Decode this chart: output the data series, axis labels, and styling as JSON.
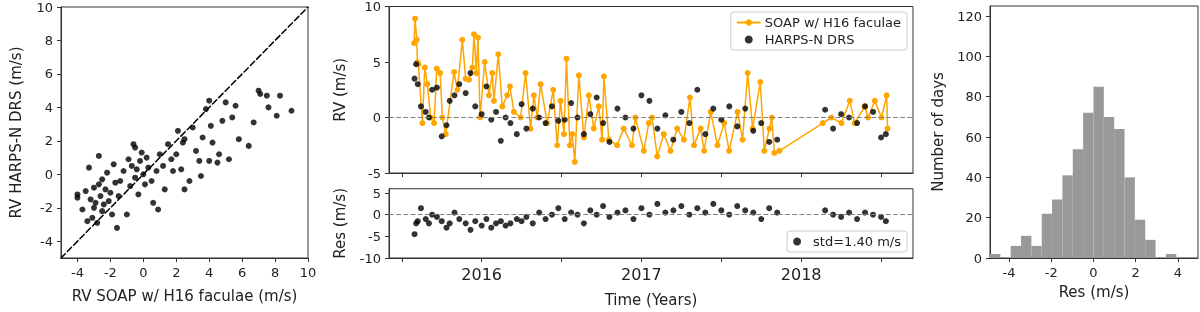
{
  "chart_data": [
    {
      "type": "scatter",
      "xlabel": "RV SOAP w/ H16 faculae (m/s)",
      "ylabel": "RV HARPS-N DRS (m/s)",
      "xlim": [
        -5,
        10
      ],
      "ylim": [
        -5,
        10
      ],
      "xticks": [
        -4,
        -2,
        0,
        2,
        4,
        6,
        8,
        10
      ],
      "yticks": [
        -4,
        -2,
        0,
        2,
        4,
        6,
        8,
        10
      ],
      "series": [
        {
          "type": "scatter",
          "color": "#000000",
          "x": [
            -4,
            -4,
            -3.7,
            -3.5,
            -3.4,
            -3.3,
            -3.2,
            -3.1,
            -3,
            -3,
            -2.9,
            -2.8,
            -2.7,
            -2.7,
            -2.6,
            -2.5,
            -2.5,
            -2.4,
            -2.3,
            -2.2,
            -2.1,
            -2,
            -1.9,
            -1.8,
            -1.7,
            -1.6,
            -1.5,
            -1.4,
            -1.2,
            -1,
            -0.9,
            -0.8,
            -0.7,
            -0.6,
            -0.5,
            -0.5,
            -0.4,
            -0.3,
            -0.2,
            -0.1,
            0,
            0.1,
            0.2,
            0.3,
            0.5,
            0.6,
            0.8,
            0.9,
            1,
            1.2,
            1.3,
            1.5,
            1.7,
            1.8,
            2,
            2.1,
            2.3,
            2.4,
            2.5,
            2.5,
            2.8,
            3,
            3.2,
            3.4,
            3.5,
            3.6,
            3.8,
            4,
            4,
            4.1,
            4.2,
            4.5,
            4.6,
            4.8,
            5,
            5.2,
            5.4,
            5.6,
            5.8,
            6.4,
            6.7,
            7,
            7.1,
            7.5,
            7.6,
            8.1,
            8.3,
            9
          ],
          "values": [
            -1.2,
            -1.4,
            -2.1,
            -1,
            -2.8,
            0.4,
            -1.5,
            -2.6,
            -0.8,
            -2,
            -1.7,
            -2.9,
            1.1,
            -0.6,
            -1.3,
            -2.2,
            -0.3,
            -1.8,
            -0.9,
            0.1,
            -1.6,
            -1.1,
            -2.4,
            0.6,
            -0.5,
            -3.2,
            -1.3,
            -0.4,
            0.2,
            -2.4,
            0.9,
            -0.7,
            0.5,
            1.8,
            -0.2,
            1.6,
            0.3,
            -1.2,
            0.8,
            1.3,
            0,
            -0.6,
            1,
            0.4,
            -0.4,
            -1.7,
            0.2,
            -2.1,
            1.2,
            0.5,
            -0.9,
            1.8,
            0.9,
            0.2,
            1.2,
            2.6,
            0.3,
            1.9,
            2.1,
            -0.9,
            -0.4,
            2.8,
            1.4,
            0.8,
            -0.1,
            2.2,
            3.9,
            4.4,
            0.8,
            2.9,
            1.9,
            0.7,
            1.2,
            3.2,
            4.3,
            0.9,
            3.4,
            4.1,
            2.1,
            1.7,
            3.1,
            5,
            4.8,
            4.7,
            4,
            3.5,
            4.7,
            3.8
          ]
        },
        {
          "type": "line",
          "color": "#000000",
          "marker": "none",
          "line_style": "dashed",
          "x": [
            -5,
            10
          ],
          "values": [
            -5,
            10
          ]
        }
      ]
    },
    {
      "type": "line",
      "ylabel": "RV (m/s)",
      "xlim": [
        2015.42,
        2018.7
      ],
      "ylim": [
        -5,
        10
      ],
      "xticks": [
        2015.5,
        2016,
        2016.5,
        2017,
        2017.5,
        2018,
        2018.5
      ],
      "yticks": [
        -5,
        0,
        5,
        10
      ],
      "tick_labels": "y",
      "legend": "top right",
      "ref_lines": [
        {
          "axis": "y",
          "value": 0,
          "color": "#808080",
          "line_style": "dashed"
        }
      ],
      "series": [
        {
          "name": "SOAP w/ H16 faculae",
          "type": "line",
          "color": "#ffa500",
          "marker": "circle",
          "x": [
            2015.577,
            2015.583,
            2015.594,
            2015.598,
            2015.604,
            2015.629,
            2015.644,
            2015.66,
            2015.681,
            2015.702,
            2015.719,
            2015.74,
            2015.754,
            2015.775,
            2015.827,
            2015.848,
            2015.879,
            2015.9,
            2015.921,
            2015.942,
            2015.952,
            2015.967,
            2015.977,
            2015.99,
            2016.019,
            2016.046,
            2016.067,
            2016.077,
            2016.104,
            2016.129,
            2016.16,
            2016.177,
            2016.202,
            2016.244,
            2016.275,
            2016.306,
            2016.327,
            2016.348,
            2016.369,
            2016.41,
            2016.448,
            2016.473,
            2016.494,
            2016.515,
            2016.531,
            2016.552,
            2016.567,
            2016.583,
            2016.608,
            2016.64,
            2016.671,
            2016.702,
            2016.733,
            2016.754,
            2016.765,
            2016.796,
            2016.848,
            2016.889,
            2016.941,
            2016.962,
            2017.015,
            2017.046,
            2017.067,
            2017.099,
            2017.14,
            2017.182,
            2017.224,
            2017.266,
            2017.304,
            2017.329,
            2017.371,
            2017.392,
            2017.434,
            2017.476,
            2017.518,
            2017.549,
            2017.602,
            2017.633,
            2017.665,
            2017.696,
            2017.744,
            2017.769,
            2017.801,
            2017.816,
            2017.832,
            2017.864,
            2018.136,
            2018.189,
            2018.252,
            2018.304,
            2018.335,
            2018.398,
            2018.419,
            2018.461,
            2018.503,
            2018.535,
            2018.541
          ],
          "values": [
            6.7,
            8.9,
            7,
            5,
            4.8,
            -0.5,
            4.5,
            3,
            0,
            -0.5,
            4.4,
            4,
            0,
            -1.5,
            4.1,
            2.5,
            7,
            3.5,
            3.4,
            4.5,
            7.5,
            4,
            7.2,
            0,
            5,
            2,
            4,
            1.5,
            5.7,
            1,
            2,
            2.8,
            0.5,
            0,
            4,
            -1,
            2,
            0,
            3,
            -0.5,
            2.5,
            -2.5,
            1.5,
            -1.5,
            5.3,
            -2.5,
            -1.5,
            -4,
            3.8,
            -1.8,
            2,
            -1,
            1,
            -2,
            3.7,
            -2,
            -2.5,
            -1,
            -2.5,
            0,
            -3,
            -0.5,
            0,
            -3.5,
            -1.5,
            -3,
            -1,
            -2,
            1.8,
            -2.5,
            -1,
            -3,
            0.5,
            -2.5,
            -0.5,
            -3,
            0.5,
            -2,
            4,
            -1,
            3.2,
            -3,
            -1,
            0,
            -3.2,
            -3,
            -0.5,
            0,
            -0.5,
            1.5,
            -0.5,
            1,
            0,
            1.5,
            0,
            2,
            -1
          ]
        },
        {
          "name": "HARPS-N DRS",
          "type": "scatter",
          "color": "#000000",
          "x": [
            2015.58,
            2015.59,
            2015.6,
            2015.62,
            2015.65,
            2015.67,
            2015.69,
            2015.72,
            2015.75,
            2015.78,
            2015.8,
            2015.83,
            2015.86,
            2015.9,
            2015.93,
            2015.96,
            2016,
            2016.03,
            2016.06,
            2016.09,
            2016.12,
            2016.15,
            2016.18,
            2016.22,
            2016.25,
            2016.28,
            2016.32,
            2016.36,
            2016.4,
            2016.44,
            2016.48,
            2016.52,
            2016.56,
            2016.6,
            2016.64,
            2016.68,
            2016.72,
            2016.76,
            2016.8,
            2016.85,
            2016.9,
            2016.95,
            2017,
            2017.05,
            2017.1,
            2017.15,
            2017.2,
            2017.25,
            2017.3,
            2017.35,
            2017.4,
            2017.45,
            2017.5,
            2017.55,
            2017.6,
            2017.65,
            2017.7,
            2017.75,
            2017.8,
            2017.85,
            2018.15,
            2018.2,
            2018.25,
            2018.3,
            2018.35,
            2018.4,
            2018.45,
            2018.5,
            2018.53
          ],
          "values": [
            3.5,
            4.8,
            3,
            1,
            0.5,
            0,
            2.5,
            2.7,
            -1.7,
            -0.7,
            1.5,
            2,
            3,
            2.2,
            4,
            1,
            0.3,
            2.8,
            -0.2,
            0.5,
            -2.1,
            0,
            -0.5,
            -1.5,
            1.2,
            -1,
            0.8,
            0,
            -0.5,
            1,
            -0.3,
            -0.2,
            1.3,
            0,
            -1.5,
            0.3,
            1.8,
            -0.5,
            -2.2,
            0.8,
            0,
            -1,
            2,
            1.5,
            -1,
            0.2,
            -2,
            0.5,
            -0.5,
            2.5,
            -1.5,
            0.8,
            -0.2,
            1,
            -0.8,
            0.8,
            -1.2,
            -0.5,
            -2.2,
            -2,
            0.7,
            -1,
            0.3,
            0,
            -0.5,
            1,
            0.5,
            -1.8,
            -1.5
          ]
        }
      ]
    },
    {
      "type": "scatter",
      "xlabel": "Time (Years)",
      "ylabel": "Res (m/s)",
      "xlim": [
        2015.42,
        2018.7
      ],
      "ylim": [
        -10,
        6
      ],
      "xticks": [
        {
          "value": 2015.5,
          "label": null
        },
        2016,
        {
          "value": 2016.5,
          "label": null
        },
        2017,
        {
          "value": 2017.5,
          "label": null
        },
        2018,
        {
          "value": 2018.5,
          "label": null
        }
      ],
      "yticks": [
        -10,
        -5,
        0,
        5
      ],
      "legend": "bottom right",
      "ref_lines": [
        {
          "axis": "y",
          "value": 0,
          "color": "#808080",
          "line_style": "dashed"
        }
      ],
      "series": [
        {
          "name": "std=1.40 m/s",
          "color": "#000000",
          "x": [
            2015.58,
            2015.59,
            2015.6,
            2015.62,
            2015.65,
            2015.67,
            2015.69,
            2015.72,
            2015.75,
            2015.78,
            2015.8,
            2015.83,
            2015.86,
            2015.9,
            2015.93,
            2015.96,
            2016,
            2016.03,
            2016.06,
            2016.09,
            2016.12,
            2016.15,
            2016.18,
            2016.22,
            2016.25,
            2016.28,
            2016.32,
            2016.36,
            2016.4,
            2016.44,
            2016.48,
            2016.52,
            2016.56,
            2016.6,
            2016.64,
            2016.68,
            2016.72,
            2016.76,
            2016.8,
            2016.85,
            2016.9,
            2016.95,
            2017,
            2017.05,
            2017.1,
            2017.15,
            2017.2,
            2017.25,
            2017.3,
            2017.35,
            2017.4,
            2017.45,
            2017.5,
            2017.55,
            2017.6,
            2017.65,
            2017.7,
            2017.75,
            2017.8,
            2017.85,
            2018.15,
            2018.2,
            2018.25,
            2018.3,
            2018.35,
            2018.4,
            2018.45,
            2018.5,
            2018.53
          ],
          "values": [
            -4.5,
            -2,
            -1.5,
            1.5,
            -1,
            -2,
            0,
            -0.5,
            -1.5,
            -3,
            -2,
            0.5,
            -1,
            -2,
            -3.5,
            -1.5,
            -2.5,
            -1,
            -3,
            -2,
            -1.5,
            -2.5,
            -2,
            -1,
            -1.5,
            -0.5,
            -2,
            0.5,
            -1,
            0,
            1.5,
            -1,
            0.5,
            0,
            -2,
            1,
            0,
            2,
            -0.5,
            0.5,
            1,
            -1,
            1.5,
            0,
            2.5,
            0.5,
            1,
            2,
            0,
            1.5,
            0.5,
            2.5,
            1,
            0,
            2,
            1,
            0.5,
            -1,
            1.5,
            0.5,
            1,
            0,
            -0.5,
            0.5,
            -1,
            0.5,
            0,
            -0.5,
            -1.5
          ]
        }
      ]
    },
    {
      "type": "histogram",
      "xlabel": "Res (m/s)",
      "ylabel": "Number of days",
      "color": "#999999",
      "xlim": [
        -4.9,
        4.95
      ],
      "ylim": [
        0,
        125
      ],
      "xticks": [
        -4,
        -2,
        0,
        2,
        4
      ],
      "yticks": [
        0,
        20,
        40,
        60,
        80,
        100,
        120
      ],
      "bins": [
        -4.9,
        -4.41,
        -3.92,
        -3.43,
        -2.94,
        -2.45,
        -1.96,
        -1.47,
        -0.98,
        -0.49,
        0,
        0.49,
        0.98,
        1.47,
        1.96,
        2.45,
        2.94,
        3.43,
        3.92
      ],
      "values": [
        2,
        0,
        6,
        11,
        6,
        22,
        29,
        41,
        54,
        72,
        85,
        70,
        64,
        40,
        19,
        9,
        0,
        2
      ]
    }
  ]
}
